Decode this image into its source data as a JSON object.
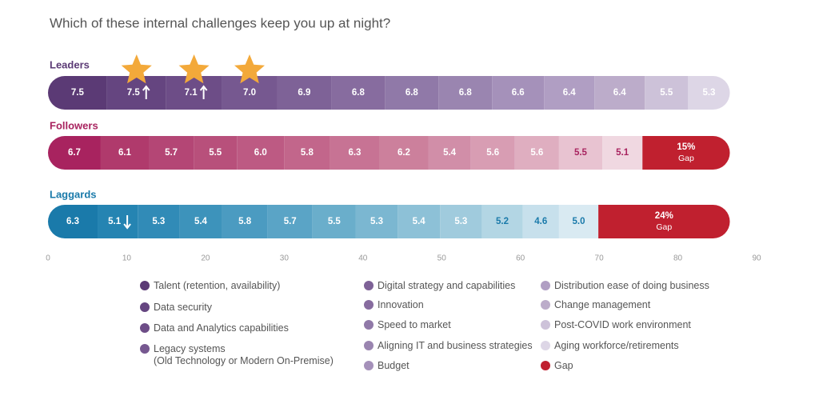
{
  "chart_data": {
    "type": "stacked_bar",
    "orientation": "horizontal",
    "title": "Which of these internal challenges keep you up at night?",
    "categories": [
      "Leaders",
      "Followers",
      "Laggards"
    ],
    "xlim": [
      0,
      90
    ],
    "xticks": [
      0,
      10,
      20,
      30,
      40,
      50,
      60,
      70,
      80,
      90
    ],
    "series": [
      {
        "name": "Talent (retention, availability)",
        "colors": [
          "#5b3a75",
          "#a8235f",
          "#1a7aaa"
        ],
        "values": [
          7.5,
          6.7,
          6.3
        ],
        "value_labels": [
          "7.5",
          "6.7",
          "6.3"
        ]
      },
      {
        "name": "Data security",
        "colors": [
          "#654580",
          "#b03a6c",
          "#2584b2"
        ],
        "values": [
          7.5,
          6.1,
          5.1
        ],
        "value_labels": [
          "7.5",
          "6.1",
          "5.1"
        ],
        "trend": [
          "up",
          null,
          "down"
        ],
        "highlight": true
      },
      {
        "name": "Data and Analytics capabilities",
        "colors": [
          "#6d4d87",
          "#b44675",
          "#318bb7"
        ],
        "values": [
          7.1,
          5.7,
          5.3
        ],
        "value_labels": [
          "7.1",
          "5.7",
          "5.3"
        ],
        "trend": [
          "up",
          null,
          null
        ],
        "highlight": true
      },
      {
        "name": "Legacy systems\n(Old Technology or Modern On-Premise)",
        "colors": [
          "#765890",
          "#b8507b",
          "#3d93bb"
        ],
        "values": [
          7.0,
          5.5,
          5.4
        ],
        "value_labels": [
          "7.0",
          "5.5",
          "5.4"
        ],
        "highlight": true
      },
      {
        "name": "Digital strategy and capabilities",
        "colors": [
          "#7e6297",
          "#bd5a83",
          "#4b9bc1"
        ],
        "values": [
          6.9,
          6.0,
          5.8
        ],
        "value_labels": [
          "6.9",
          "6.0",
          "5.8"
        ]
      },
      {
        "name": "Innovation",
        "colors": [
          "#876c9f",
          "#c2668b",
          "#5aa4c6"
        ],
        "values": [
          6.8,
          5.8,
          5.7
        ],
        "value_labels": [
          "6.8",
          "5.8",
          "5.7"
        ]
      },
      {
        "name": "Speed to market",
        "colors": [
          "#9079a8",
          "#c77394",
          "#6aaecb"
        ],
        "values": [
          6.8,
          6.3,
          5.5
        ],
        "value_labels": [
          "6.8",
          "6.3",
          "5.5"
        ]
      },
      {
        "name": "Aligning IT and business strategies",
        "colors": [
          "#9a85b0",
          "#cc809c",
          "#7bb7d1"
        ],
        "values": [
          6.8,
          6.2,
          5.3
        ],
        "value_labels": [
          "6.8",
          "6.2",
          "5.3"
        ]
      },
      {
        "name": "Budget",
        "colors": [
          "#a591ba",
          "#d18ea8",
          "#8dc1d7"
        ],
        "values": [
          6.6,
          5.4,
          5.4
        ],
        "value_labels": [
          "6.6",
          "5.4",
          "5.4"
        ]
      },
      {
        "name": "Distribution ease of doing business",
        "colors": [
          "#b09ec3",
          "#d89db3",
          "#a0cbdd"
        ],
        "values": [
          6.4,
          5.6,
          5.3
        ],
        "value_labels": [
          "6.4",
          "5.6",
          "5.3"
        ]
      },
      {
        "name": "Change management",
        "colors": [
          "#bcacca",
          "#dfaec0",
          "#b3d6e4"
        ],
        "values": [
          6.4,
          5.6,
          5.2
        ],
        "value_labels": [
          "6.4",
          "5.6",
          "5.2"
        ]
      },
      {
        "name": "Post-COVID work environment",
        "colors": [
          "#cdc2d9",
          "#e8c3d1",
          "#c7e0ec"
        ],
        "values": [
          5.5,
          5.5,
          4.6
        ],
        "value_labels": [
          "5.5",
          "5.5",
          "4.6"
        ]
      },
      {
        "name": "Aging workforce/retirements",
        "colors": [
          "#ddd6e6",
          "#f0d8e1",
          "#d9eaf2"
        ],
        "values": [
          5.3,
          5.1,
          5.0
        ],
        "value_labels": [
          "5.3",
          "5.1",
          "5.0"
        ]
      },
      {
        "name": "Gap",
        "colors": [
          "#c0202f",
          "#c0202f",
          "#c0202f"
        ],
        "values": [
          null,
          15,
          24
        ],
        "value_labels": [
          null,
          "15%",
          "24%"
        ],
        "gap": true
      }
    ]
  }
}
